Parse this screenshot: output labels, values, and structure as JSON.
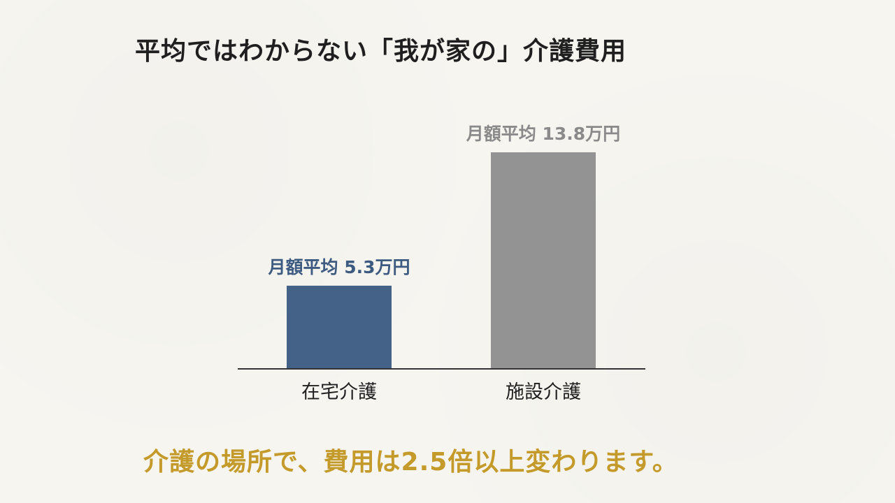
{
  "title": "平均ではわからない「我が家の」介護費用",
  "caption": "介護の場所で、費用は2.5倍以上変わります。",
  "colors": {
    "home_bar": "#446287",
    "facility_bar": "#939393",
    "home_label": "#3d5a80",
    "facility_label": "#8a8a8a",
    "caption": "#c49a2a"
  },
  "chart_data": {
    "type": "bar",
    "categories": [
      "在宅介護",
      "施設介護"
    ],
    "values": [
      5.3,
      13.8
    ],
    "data_labels": [
      "月額平均 5.3万円",
      "月額平均 13.8万円"
    ],
    "unit": "万円",
    "ylim": [
      0,
      15
    ],
    "grid": false,
    "legend": "none",
    "title": "",
    "xlabel": "",
    "ylabel": ""
  }
}
